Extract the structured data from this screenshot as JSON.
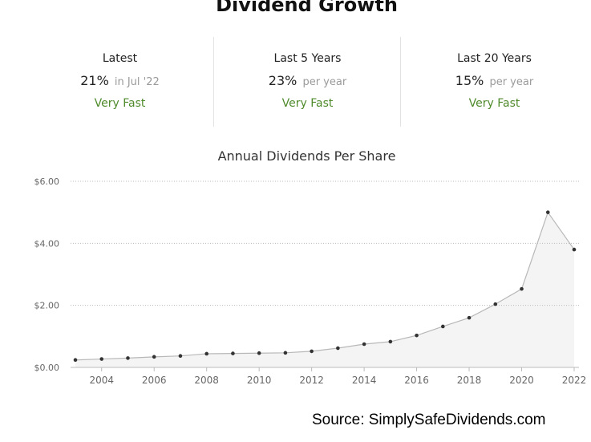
{
  "header": {
    "title": "Dividend Growth"
  },
  "stats": [
    {
      "label": "Latest",
      "value": "21%",
      "suffix": "in Jul '22",
      "rating": "Very Fast"
    },
    {
      "label": "Last 5 Years",
      "value": "23%",
      "suffix": "per year",
      "rating": "Very Fast"
    },
    {
      "label": "Last 20 Years",
      "value": "15%",
      "suffix": "per year",
      "rating": "Very Fast"
    }
  ],
  "chart_data": {
    "type": "area",
    "title": "Annual Dividends Per Share",
    "xlabel": "",
    "ylabel": "",
    "x": [
      2003,
      2004,
      2005,
      2006,
      2007,
      2008,
      2009,
      2010,
      2011,
      2012,
      2013,
      2014,
      2015,
      2016,
      2017,
      2018,
      2019,
      2020,
      2021,
      2022
    ],
    "values": [
      0.24,
      0.27,
      0.3,
      0.34,
      0.37,
      0.44,
      0.45,
      0.46,
      0.47,
      0.52,
      0.62,
      0.75,
      0.83,
      1.03,
      1.32,
      1.6,
      2.04,
      2.53,
      5.0,
      3.8
    ],
    "y_ticks": [
      0,
      2,
      4,
      6
    ],
    "y_tick_labels": [
      "$0.00",
      "$2.00",
      "$4.00",
      "$6.00"
    ],
    "x_ticks": [
      2004,
      2006,
      2008,
      2010,
      2012,
      2014,
      2016,
      2018,
      2020,
      2022
    ],
    "x_tick_labels": [
      "2004",
      "2006",
      "2008",
      "2010",
      "2012",
      "2014",
      "2016",
      "2018",
      "2020",
      "2022"
    ],
    "ylim": [
      0,
      6
    ],
    "xlim": [
      2003,
      2022
    ],
    "grid": true,
    "colors": {
      "line": "#b8b8b8",
      "fill": "#f4f4f4",
      "point": "#333333",
      "grid": "#bbbbbb"
    }
  },
  "footer": {
    "source": "Source: SimplySafeDividends.com"
  }
}
